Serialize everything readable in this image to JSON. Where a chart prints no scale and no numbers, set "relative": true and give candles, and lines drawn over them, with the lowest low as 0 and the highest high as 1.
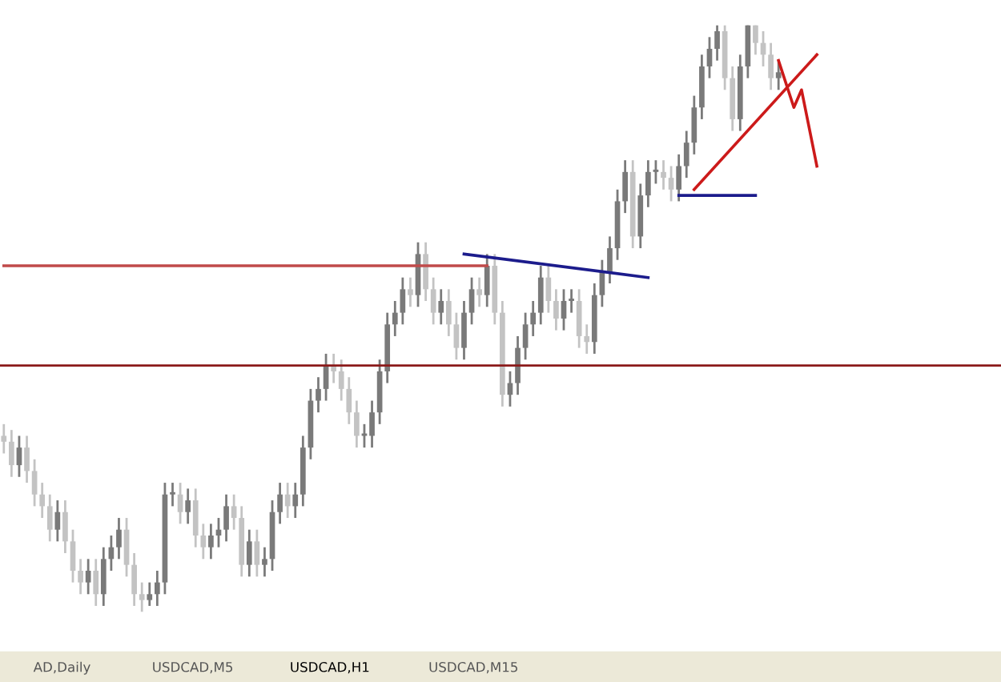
{
  "chart_data": {
    "type": "candlestick",
    "relative": true,
    "colors": [
      "#c3c3c3",
      "#c3c3c3",
      "#7a7a7a",
      "#c3c3c3",
      "#c3c3c3",
      "#c3c3c3",
      "#c3c3c3",
      "#7a7a7a",
      "#c3c3c3",
      "#c3c3c3",
      "#c3c3c3",
      "#7a7a7a",
      "#c3c3c3",
      "#7a7a7a",
      "#7a7a7a",
      "#7a7a7a",
      "#c3c3c3",
      "#c3c3c3",
      "#c3c3c3",
      "#7a7a7a",
      "#7a7a7a",
      "#7a7a7a",
      "#7a7a7a",
      "#c3c3c3",
      "#7a7a7a",
      "#c3c3c3",
      "#c3c3c3",
      "#7a7a7a",
      "#7a7a7a",
      "#7a7a7a",
      "#c3c3c3",
      "#c3c3c3",
      "#7a7a7a",
      "#c3c3c3",
      "#7a7a7a",
      "#7a7a7a",
      "#7a7a7a",
      "#c3c3c3",
      "#7a7a7a",
      "#7a7a7a",
      "#7a7a7a",
      "#7a7a7a",
      "#7a7a7a",
      "#c3c3c3",
      "#c3c3c3",
      "#c3c3c3",
      "#c3c3c3",
      "#7a7a7a",
      "#7a7a7a",
      "#7a7a7a",
      "#7a7a7a",
      "#7a7a7a",
      "#7a7a7a",
      "#c3c3c3",
      "#7a7a7a",
      "#c3c3c3",
      "#c3c3c3",
      "#7a7a7a",
      "#c3c3c3",
      "#c3c3c3",
      "#7a7a7a",
      "#7a7a7a",
      "#c3c3c3",
      "#7a7a7a",
      "#c3c3c3",
      "#c3c3c3",
      "#7a7a7a",
      "#7a7a7a",
      "#7a7a7a",
      "#7a7a7a",
      "#7a7a7a",
      "#c3c3c3",
      "#c3c3c3",
      "#7a7a7a",
      "#7a7a7a",
      "#c3c3c3",
      "#c3c3c3",
      "#7a7a7a",
      "#7a7a7a",
      "#7a7a7a",
      "#7a7a7a",
      "#7a7a7a",
      "#c3c3c3",
      "#7a7a7a",
      "#7a7a7a",
      "#7a7a7a",
      "#c3c3c3",
      "#c3c3c3",
      "#7a7a7a",
      "#7a7a7a",
      "#7a7a7a",
      "#7a7a7a",
      "#7a7a7a",
      "#7a7a7a",
      "#c3c3c3",
      "#c3c3c3",
      "#7a7a7a",
      "#7a7a7a",
      "#c3c3c3",
      "#c3c3c3",
      "#c3c3c3",
      "#7a7a7a",
      null,
      null,
      null,
      null,
      null
    ],
    "categories": [
      null,
      null,
      null,
      null,
      null,
      null,
      null,
      null,
      null,
      null,
      null,
      null,
      null,
      null,
      null,
      null,
      null,
      null,
      null,
      null,
      null,
      null,
      null,
      null,
      null,
      null,
      null,
      null,
      null,
      null,
      null,
      null,
      null,
      null,
      null,
      null,
      null,
      null,
      null,
      null,
      null,
      null,
      null,
      null,
      null,
      null,
      null,
      null,
      null,
      null,
      null,
      null,
      null,
      null,
      null,
      null,
      null,
      null,
      null,
      null,
      null,
      null,
      null,
      null,
      null,
      null,
      null,
      null,
      null,
      null,
      null,
      null,
      null,
      null,
      null,
      null,
      null,
      null,
      null,
      null,
      null,
      null,
      null,
      null,
      null,
      null,
      null,
      null,
      null,
      null,
      null,
      null,
      null,
      null,
      null,
      null,
      null,
      null,
      null,
      null,
      null,
      null,
      null,
      null,
      null,
      null,
      null
    ],
    "ohlc": [
      [
        0.3,
        0.32,
        0.27,
        0.29
      ],
      [
        0.29,
        0.31,
        0.23,
        0.25
      ],
      [
        0.25,
        0.3,
        0.23,
        0.28
      ],
      [
        0.28,
        0.3,
        0.22,
        0.24
      ],
      [
        0.24,
        0.26,
        0.18,
        0.2
      ],
      [
        0.2,
        0.22,
        0.16,
        0.18
      ],
      [
        0.18,
        0.2,
        0.12,
        0.14
      ],
      [
        0.14,
        0.19,
        0.12,
        0.17
      ],
      [
        0.17,
        0.19,
        0.1,
        0.12
      ],
      [
        0.12,
        0.14,
        0.05,
        0.07
      ],
      [
        0.07,
        0.09,
        0.03,
        0.05
      ],
      [
        0.05,
        0.09,
        0.03,
        0.07
      ],
      [
        0.07,
        0.09,
        0.01,
        0.03
      ],
      [
        0.03,
        0.11,
        0.01,
        0.09
      ],
      [
        0.09,
        0.13,
        0.07,
        0.11
      ],
      [
        0.11,
        0.16,
        0.09,
        0.14
      ],
      [
        0.14,
        0.16,
        0.06,
        0.08
      ],
      [
        0.08,
        0.1,
        0.01,
        0.03
      ],
      [
        0.03,
        0.05,
        0.0,
        0.02
      ],
      [
        0.02,
        0.05,
        0.01,
        0.03
      ],
      [
        0.03,
        0.07,
        0.01,
        0.05
      ],
      [
        0.05,
        0.22,
        0.03,
        0.2
      ],
      [
        0.2,
        0.22,
        0.18,
        0.2
      ],
      [
        0.2,
        0.22,
        0.15,
        0.17
      ],
      [
        0.17,
        0.21,
        0.15,
        0.19
      ],
      [
        0.19,
        0.21,
        0.11,
        0.13
      ],
      [
        0.13,
        0.15,
        0.09,
        0.11
      ],
      [
        0.11,
        0.15,
        0.09,
        0.13
      ],
      [
        0.13,
        0.16,
        0.11,
        0.14
      ],
      [
        0.14,
        0.2,
        0.12,
        0.18
      ],
      [
        0.18,
        0.2,
        0.14,
        0.16
      ],
      [
        0.16,
        0.18,
        0.06,
        0.08
      ],
      [
        0.08,
        0.14,
        0.06,
        0.12
      ],
      [
        0.12,
        0.14,
        0.06,
        0.08
      ],
      [
        0.08,
        0.11,
        0.06,
        0.09
      ],
      [
        0.09,
        0.19,
        0.07,
        0.17
      ],
      [
        0.17,
        0.22,
        0.15,
        0.2
      ],
      [
        0.2,
        0.22,
        0.16,
        0.18
      ],
      [
        0.18,
        0.22,
        0.16,
        0.2
      ],
      [
        0.2,
        0.3,
        0.18,
        0.28
      ],
      [
        0.28,
        0.38,
        0.26,
        0.36
      ],
      [
        0.36,
        0.4,
        0.34,
        0.38
      ],
      [
        0.38,
        0.44,
        0.36,
        0.42
      ],
      [
        0.42,
        0.44,
        0.39,
        0.41
      ],
      [
        0.41,
        0.43,
        0.36,
        0.38
      ],
      [
        0.38,
        0.4,
        0.32,
        0.34
      ],
      [
        0.34,
        0.36,
        0.28,
        0.3
      ],
      [
        0.3,
        0.32,
        0.28,
        0.3
      ],
      [
        0.3,
        0.36,
        0.28,
        0.34
      ],
      [
        0.34,
        0.43,
        0.32,
        0.41
      ],
      [
        0.41,
        0.51,
        0.39,
        0.49
      ],
      [
        0.49,
        0.53,
        0.47,
        0.51
      ],
      [
        0.51,
        0.57,
        0.49,
        0.55
      ],
      [
        0.55,
        0.57,
        0.52,
        0.54
      ],
      [
        0.54,
        0.63,
        0.52,
        0.61
      ],
      [
        0.61,
        0.63,
        0.53,
        0.55
      ],
      [
        0.55,
        0.57,
        0.49,
        0.51
      ],
      [
        0.51,
        0.55,
        0.49,
        0.53
      ],
      [
        0.53,
        0.55,
        0.47,
        0.49
      ],
      [
        0.49,
        0.51,
        0.43,
        0.45
      ],
      [
        0.45,
        0.53,
        0.43,
        0.51
      ],
      [
        0.51,
        0.57,
        0.49,
        0.55
      ],
      [
        0.55,
        0.57,
        0.52,
        0.54
      ],
      [
        0.54,
        0.61,
        0.52,
        0.59
      ],
      [
        0.59,
        0.61,
        0.49,
        0.51
      ],
      [
        0.51,
        0.53,
        0.35,
        0.37
      ],
      [
        0.37,
        0.41,
        0.35,
        0.39
      ],
      [
        0.39,
        0.47,
        0.37,
        0.45
      ],
      [
        0.45,
        0.51,
        0.43,
        0.49
      ],
      [
        0.49,
        0.53,
        0.47,
        0.51
      ],
      [
        0.51,
        0.59,
        0.49,
        0.57
      ],
      [
        0.57,
        0.59,
        0.51,
        0.53
      ],
      [
        0.53,
        0.55,
        0.48,
        0.5
      ],
      [
        0.5,
        0.55,
        0.48,
        0.53
      ],
      [
        0.53,
        0.55,
        0.51,
        0.53
      ],
      [
        0.53,
        0.55,
        0.45,
        0.47
      ],
      [
        0.47,
        0.49,
        0.44,
        0.46
      ],
      [
        0.46,
        0.56,
        0.44,
        0.54
      ],
      [
        0.54,
        0.6,
        0.52,
        0.58
      ],
      [
        0.58,
        0.64,
        0.56,
        0.62
      ],
      [
        0.62,
        0.72,
        0.6,
        0.7
      ],
      [
        0.7,
        0.77,
        0.68,
        0.75
      ],
      [
        0.75,
        0.77,
        0.62,
        0.64
      ],
      [
        0.64,
        0.73,
        0.62,
        0.71
      ],
      [
        0.71,
        0.77,
        0.69,
        0.75
      ],
      [
        0.75,
        0.77,
        0.73,
        0.75
      ],
      [
        0.75,
        0.77,
        0.72,
        0.74
      ],
      [
        0.74,
        0.76,
        0.7,
        0.72
      ],
      [
        0.72,
        0.78,
        0.7,
        0.76
      ],
      [
        0.76,
        0.82,
        0.74,
        0.8
      ],
      [
        0.8,
        0.88,
        0.78,
        0.86
      ],
      [
        0.86,
        0.95,
        0.84,
        0.93
      ],
      [
        0.93,
        0.98,
        0.91,
        0.96
      ],
      [
        0.96,
        1.0,
        0.94,
        0.99
      ],
      [
        0.99,
        1.0,
        0.89,
        0.91
      ],
      [
        0.91,
        0.93,
        0.82,
        0.84
      ],
      [
        0.84,
        0.95,
        0.82,
        0.93
      ],
      [
        0.93,
        1.0,
        0.91,
        1.0
      ],
      [
        1.0,
        1.0,
        0.95,
        0.97
      ],
      [
        0.97,
        0.99,
        0.93,
        0.95
      ],
      [
        0.95,
        0.97,
        0.89,
        0.91
      ],
      [
        0.91,
        0.94,
        0.89,
        0.92
      ],
      null,
      null,
      null,
      null,
      null
    ],
    "series": [
      {
        "type": "line",
        "color": "#c04a4a",
        "values": [
          0.59,
          null,
          null,
          null,
          null,
          null,
          null,
          null,
          null,
          null,
          null,
          null,
          null,
          null,
          null,
          null,
          null,
          null,
          null,
          null,
          null,
          null,
          null,
          null,
          null,
          null,
          null,
          null,
          null,
          null,
          null,
          null,
          null,
          null,
          null,
          null,
          null,
          null,
          null,
          null,
          null,
          null,
          null,
          null,
          null,
          null,
          null,
          null,
          null,
          null,
          null,
          null,
          null,
          null,
          null,
          null,
          null,
          null,
          null,
          null,
          null,
          null,
          null,
          0.59,
          null,
          null,
          null,
          null,
          null,
          null,
          null,
          null,
          null,
          null,
          null,
          null,
          null,
          null,
          null,
          null,
          null,
          null,
          null,
          null,
          null,
          null,
          null,
          null,
          null,
          null,
          null,
          null,
          null,
          null,
          null,
          null,
          null,
          null,
          null,
          null,
          null,
          null,
          null,
          null,
          null,
          null,
          null
        ]
      },
      {
        "type": "line",
        "color": "#1c1c8c",
        "values": [
          null,
          null,
          null,
          null,
          null,
          null,
          null,
          null,
          null,
          null,
          null,
          null,
          null,
          null,
          null,
          null,
          null,
          null,
          null,
          null,
          null,
          null,
          null,
          null,
          null,
          null,
          null,
          null,
          null,
          null,
          null,
          null,
          null,
          null,
          null,
          null,
          null,
          null,
          null,
          null,
          null,
          null,
          null,
          null,
          null,
          null,
          null,
          null,
          null,
          null,
          null,
          null,
          null,
          null,
          null,
          null,
          null,
          null,
          null,
          null,
          0.61,
          null,
          null,
          null,
          null,
          null,
          null,
          null,
          null,
          null,
          null,
          null,
          null,
          null,
          null,
          null,
          null,
          null,
          null,
          null,
          null,
          null,
          null,
          null,
          0.57,
          null,
          null,
          null,
          null,
          null,
          null,
          null,
          null,
          null,
          null,
          null,
          null,
          null,
          null,
          null,
          null,
          null,
          null,
          null,
          null,
          null,
          null
        ]
      },
      {
        "type": "line",
        "color": "#1c1c8c",
        "values": [
          null,
          null,
          null,
          null,
          null,
          null,
          null,
          null,
          null,
          null,
          null,
          null,
          null,
          null,
          null,
          null,
          null,
          null,
          null,
          null,
          null,
          null,
          null,
          null,
          null,
          null,
          null,
          null,
          null,
          null,
          null,
          null,
          null,
          null,
          null,
          null,
          null,
          null,
          null,
          null,
          null,
          null,
          null,
          null,
          null,
          null,
          null,
          null,
          null,
          null,
          null,
          null,
          null,
          null,
          null,
          null,
          null,
          null,
          null,
          null,
          null,
          null,
          null,
          null,
          null,
          null,
          null,
          null,
          null,
          null,
          null,
          null,
          null,
          null,
          null,
          null,
          null,
          null,
          null,
          null,
          null,
          null,
          null,
          null,
          null,
          null,
          null,
          null,
          0.71,
          null,
          null,
          null,
          null,
          null,
          null,
          null,
          null,
          null,
          0.71,
          null,
          null,
          null,
          null,
          null,
          null,
          null,
          null
        ]
      },
      {
        "type": "line",
        "color": "#cc1a1a",
        "values": [
          null,
          null,
          null,
          null,
          null,
          null,
          null,
          null,
          null,
          null,
          null,
          null,
          null,
          null,
          null,
          null,
          null,
          null,
          null,
          null,
          null,
          null,
          null,
          null,
          null,
          null,
          null,
          null,
          null,
          null,
          null,
          null,
          null,
          null,
          null,
          null,
          null,
          null,
          null,
          null,
          null,
          null,
          null,
          null,
          null,
          null,
          null,
          null,
          null,
          null,
          null,
          null,
          null,
          null,
          null,
          null,
          null,
          null,
          null,
          null,
          null,
          null,
          null,
          null,
          null,
          null,
          null,
          null,
          null,
          null,
          null,
          null,
          null,
          null,
          null,
          null,
          null,
          null,
          null,
          null,
          null,
          null,
          null,
          null,
          null,
          null,
          null,
          null,
          null,
          null,
          0.72,
          null,
          null,
          null,
          null,
          null,
          null,
          null,
          null,
          null,
          null,
          null,
          null,
          null,
          null,
          null,
          0.95
        ]
      },
      {
        "type": "line",
        "color": "#cc1a1a",
        "values": [
          null,
          null,
          null,
          null,
          null,
          null,
          null,
          null,
          null,
          null,
          null,
          null,
          null,
          null,
          null,
          null,
          null,
          null,
          null,
          null,
          null,
          null,
          null,
          null,
          null,
          null,
          null,
          null,
          null,
          null,
          null,
          null,
          null,
          null,
          null,
          null,
          null,
          null,
          null,
          null,
          null,
          null,
          null,
          null,
          null,
          null,
          null,
          null,
          null,
          null,
          null,
          null,
          null,
          null,
          null,
          null,
          null,
          null,
          null,
          null,
          null,
          null,
          null,
          null,
          null,
          null,
          null,
          null,
          null,
          null,
          null,
          null,
          null,
          null,
          null,
          null,
          null,
          null,
          null,
          null,
          null,
          null,
          null,
          null,
          null,
          null,
          null,
          null,
          null,
          null,
          null,
          null,
          null,
          null,
          null,
          null,
          null,
          null,
          null,
          null,
          null,
          0.94,
          null,
          0.86,
          0.89,
          null,
          0.76
        ]
      }
    ],
    "ref_lines": [
      {
        "axis": "y",
        "value": 0.42,
        "color": "#8b1a1a"
      }
    ],
    "annotations": [
      "AD,Daily",
      "USDCAD,M5",
      "USDCAD,H1",
      "USDCAD,M15"
    ]
  }
}
